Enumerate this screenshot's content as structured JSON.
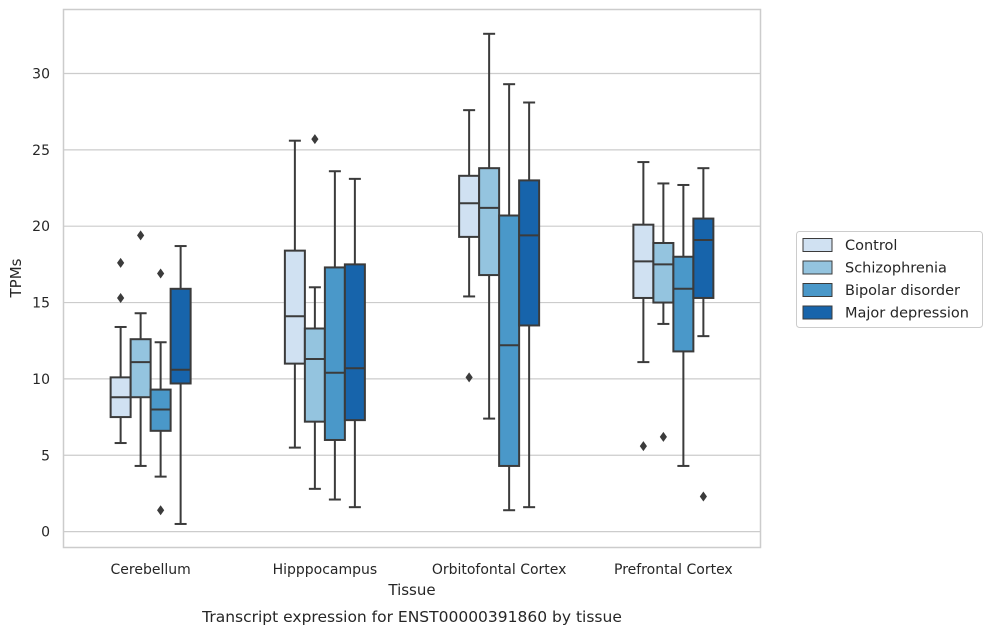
{
  "chart_data": {
    "type": "box",
    "xlabel": "Tissue",
    "ylabel": "TPMs",
    "caption": "Transcript expression for ENST00000391860 by tissue",
    "ylim": [
      -1,
      33.5
    ],
    "yticks": [
      0,
      5,
      10,
      15,
      20,
      25,
      30
    ],
    "grid": true,
    "legend_position": "right",
    "categories": [
      "Cerebellum",
      "Hipppocampus",
      "Orbitofontal Cortex",
      "Prefrontal Cortex"
    ],
    "series": [
      {
        "name": "Control",
        "color": "#d0e1f2",
        "boxes": [
          {
            "whisker_low": 5.8,
            "q1": 7.5,
            "median": 8.8,
            "q3": 10.1,
            "whisker_high": 13.4,
            "outliers": [
              15.3,
              17.6
            ]
          },
          {
            "whisker_low": 5.5,
            "q1": 11.0,
            "median": 14.1,
            "q3": 18.4,
            "whisker_high": 25.6,
            "outliers": []
          },
          {
            "whisker_low": 15.4,
            "q1": 19.3,
            "median": 21.5,
            "q3": 23.3,
            "whisker_high": 27.6,
            "outliers": [
              10.1
            ]
          },
          {
            "whisker_low": 11.1,
            "q1": 15.3,
            "median": 17.7,
            "q3": 20.1,
            "whisker_high": 24.2,
            "outliers": [
              5.6
            ]
          }
        ]
      },
      {
        "name": "Schizophrenia",
        "color": "#94c4df",
        "boxes": [
          {
            "whisker_low": 4.3,
            "q1": 8.8,
            "median": 11.1,
            "q3": 12.6,
            "whisker_high": 14.3,
            "outliers": [
              19.4
            ]
          },
          {
            "whisker_low": 2.8,
            "q1": 7.2,
            "median": 11.3,
            "q3": 13.3,
            "whisker_high": 16.0,
            "outliers": [
              25.7
            ]
          },
          {
            "whisker_low": 7.4,
            "q1": 16.8,
            "median": 21.2,
            "q3": 23.8,
            "whisker_high": 32.6,
            "outliers": []
          },
          {
            "whisker_low": 13.6,
            "q1": 15.0,
            "median": 17.5,
            "q3": 18.9,
            "whisker_high": 22.8,
            "outliers": [
              6.2
            ]
          }
        ]
      },
      {
        "name": "Bipolar disorder",
        "color": "#4a98c9",
        "boxes": [
          {
            "whisker_low": 3.6,
            "q1": 6.6,
            "median": 8.0,
            "q3": 9.3,
            "whisker_high": 12.4,
            "outliers": [
              1.4,
              16.9
            ]
          },
          {
            "whisker_low": 2.1,
            "q1": 6.0,
            "median": 10.4,
            "q3": 17.3,
            "whisker_high": 23.6,
            "outliers": []
          },
          {
            "whisker_low": 1.4,
            "q1": 4.3,
            "median": 12.2,
            "q3": 20.7,
            "whisker_high": 29.3,
            "outliers": []
          },
          {
            "whisker_low": 4.3,
            "q1": 11.8,
            "median": 15.9,
            "q3": 18.0,
            "whisker_high": 22.7,
            "outliers": []
          }
        ]
      },
      {
        "name": "Major depression",
        "color": "#1764ab",
        "boxes": [
          {
            "whisker_low": 0.5,
            "q1": 9.7,
            "median": 10.6,
            "q3": 15.9,
            "whisker_high": 18.7,
            "outliers": []
          },
          {
            "whisker_low": 1.6,
            "q1": 7.3,
            "median": 10.7,
            "q3": 17.5,
            "whisker_high": 23.1,
            "outliers": []
          },
          {
            "whisker_low": 1.6,
            "q1": 13.5,
            "median": 19.4,
            "q3": 23.0,
            "whisker_high": 28.1,
            "outliers": []
          },
          {
            "whisker_low": 12.8,
            "q1": 15.3,
            "median": 19.1,
            "q3": 20.5,
            "whisker_high": 23.8,
            "outliers": [
              2.3
            ]
          }
        ]
      }
    ]
  }
}
